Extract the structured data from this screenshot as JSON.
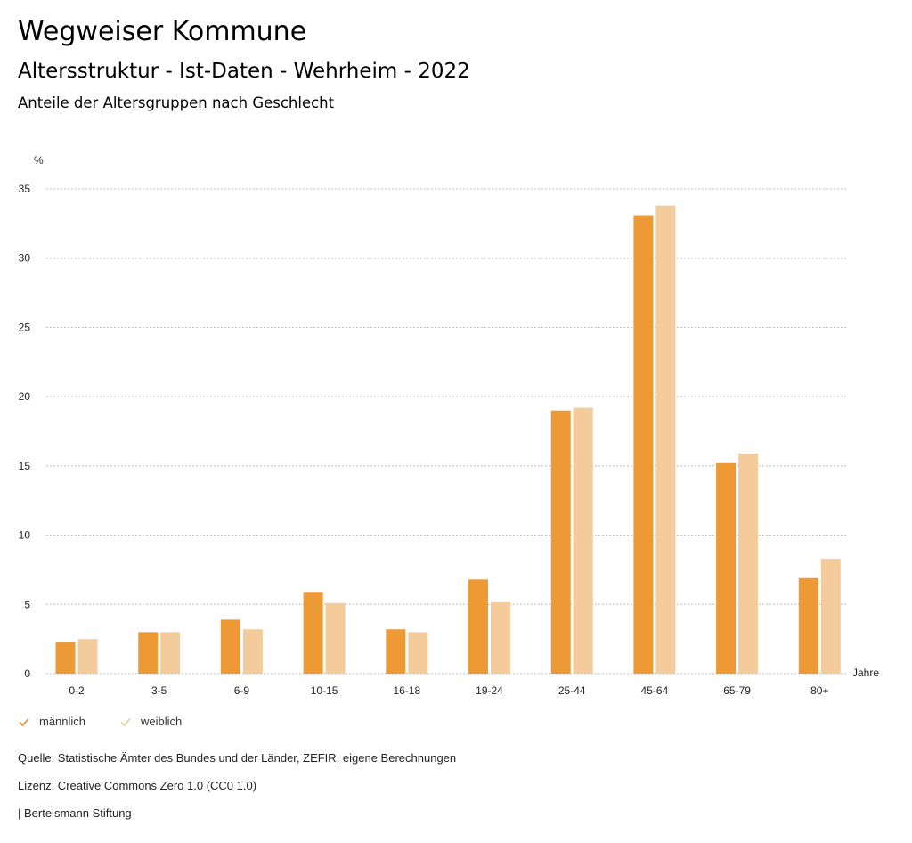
{
  "header": {
    "title": "Wegweiser Kommune",
    "subtitle": "Altersstruktur - Ist-Daten - Wehrheim - 2022",
    "subsubtitle": "Anteile der Altersgruppen nach Geschlecht"
  },
  "chart_data": {
    "type": "bar",
    "title": "Anteile der Altersgruppen nach Geschlecht",
    "xlabel": "Jahre",
    "ylabel": "%",
    "ylim": [
      0,
      35
    ],
    "yticks": [
      0,
      5,
      10,
      15,
      20,
      25,
      30,
      35
    ],
    "grid": true,
    "legend_position": "bottom-left",
    "categories": [
      "0-2",
      "3-5",
      "6-9",
      "10-15",
      "16-18",
      "19-24",
      "25-44",
      "45-64",
      "65-79",
      "80+"
    ],
    "series": [
      {
        "name": "männlich",
        "color": "#ED9935",
        "values": [
          2.3,
          3.0,
          3.9,
          5.9,
          3.2,
          6.8,
          19.0,
          33.1,
          15.2,
          6.9
        ]
      },
      {
        "name": "weiblich",
        "color": "#F4CB9A",
        "values": [
          2.5,
          3.0,
          3.2,
          5.1,
          3.0,
          5.2,
          19.2,
          33.8,
          15.9,
          8.3
        ]
      }
    ]
  },
  "legend": [
    {
      "label": "männlich",
      "color": "#ED9935",
      "icon": "checkmark-icon"
    },
    {
      "label": "weiblich",
      "color": "#F4CB9A",
      "icon": "checkmark-icon"
    }
  ],
  "footer": {
    "source": "Quelle: Statistische Ämter des Bundes und der Länder, ZEFIR, eigene Berechnungen",
    "license": "Lizenz: Creative Commons Zero 1.0 (CC0 1.0)",
    "publisher": "| Bertelsmann Stiftung"
  }
}
